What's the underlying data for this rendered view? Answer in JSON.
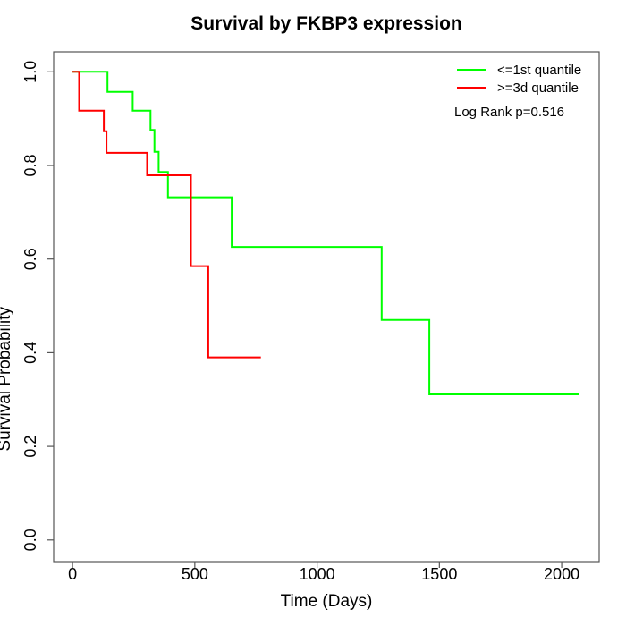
{
  "page_background": "#ffffff",
  "chart_data": {
    "type": "line",
    "subtype": "kaplan-meier-step-survival",
    "title": "Survival by FKBP3 expression",
    "xlabel": "Time (Days)",
    "ylabel": "Survival Probability",
    "xticks": [
      0,
      500,
      1000,
      1500,
      2000
    ],
    "xtick_labels": [
      "0",
      "500",
      "1000",
      "1500",
      "2000"
    ],
    "yticks": [
      0,
      0.2,
      0.4,
      0.6,
      0.8,
      1
    ],
    "ytick_labels": [
      "0.0",
      "0.2",
      "0.4",
      "0.6",
      "0.8",
      "1.0"
    ],
    "xlim": [
      0,
      2073
    ],
    "ylim": [
      0,
      1
    ],
    "grid": false,
    "legend_position": "top-right-inside",
    "annotation": "Log Rank p=0.516",
    "axis_color": "#555555",
    "series": [
      {
        "name": "<=1st quantile",
        "color": "#00ff00",
        "end_time": 2073,
        "steps": [
          [
            0,
            1.0
          ],
          [
            143,
            0.957
          ],
          [
            246,
            0.917
          ],
          [
            319,
            0.876
          ],
          [
            335,
            0.829
          ],
          [
            352,
            0.786
          ],
          [
            390,
            0.732
          ],
          [
            651,
            0.626
          ],
          [
            1264,
            0.47
          ],
          [
            1459,
            0.311
          ]
        ]
      },
      {
        "name": ">=3d quantile",
        "color": "#ff0000",
        "end_time": 770,
        "steps": [
          [
            0,
            1.0
          ],
          [
            27,
            0.917
          ],
          [
            128,
            0.873
          ],
          [
            139,
            0.827
          ],
          [
            305,
            0.779
          ],
          [
            484,
            0.585
          ],
          [
            555,
            0.39
          ]
        ]
      }
    ]
  }
}
